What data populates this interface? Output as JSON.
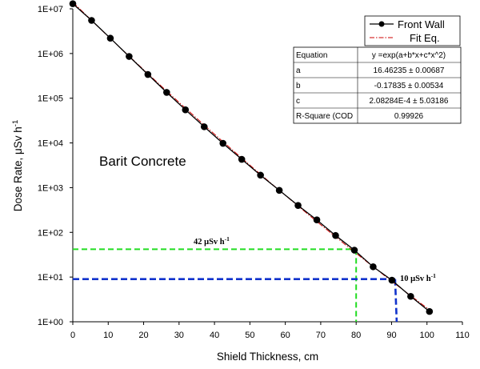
{
  "chart_data": {
    "type": "scatter",
    "xlabel": "Shield Thickness, cm",
    "ylabel_main": "Dose Rate, μSv h",
    "ylabel_sup": "-1",
    "xlim": [
      0,
      110
    ],
    "xticks": [
      0,
      10,
      20,
      30,
      40,
      50,
      60,
      70,
      80,
      90,
      100,
      110
    ],
    "ylim_log10": [
      0,
      7
    ],
    "yscale": "log",
    "yticks": [
      {
        "exp": 7,
        "label": "1E+07"
      },
      {
        "exp": 6,
        "label": "1E+06"
      },
      {
        "exp": 5,
        "label": "1E+05"
      },
      {
        "exp": 4,
        "label": "1E+04"
      },
      {
        "exp": 3,
        "label": "1E+03"
      },
      {
        "exp": 2,
        "label": "1E+02"
      },
      {
        "exp": 1,
        "label": "1E+01"
      },
      {
        "exp": 0,
        "label": "1E+00"
      }
    ],
    "grid": false,
    "legend_placement": "top-right",
    "series": [
      {
        "name": "Front Wall",
        "color": "#000000",
        "marker": "circle",
        "points": [
          [
            0,
            13000000
          ],
          [
            5.3,
            5500000
          ],
          [
            10.6,
            2200000
          ],
          [
            15.9,
            860000
          ],
          [
            21.2,
            340000
          ],
          [
            26.5,
            135000
          ],
          [
            31.8,
            55000
          ],
          [
            37.1,
            23000
          ],
          [
            42.4,
            9800
          ],
          [
            47.7,
            4300
          ],
          [
            53,
            1900
          ],
          [
            58.3,
            870
          ],
          [
            63.6,
            400
          ],
          [
            68.9,
            190
          ],
          [
            74.2,
            85
          ],
          [
            79.5,
            40
          ],
          [
            84.8,
            17
          ],
          [
            90.1,
            8.5
          ],
          [
            95.4,
            3.7
          ],
          [
            100.7,
            1.7
          ]
        ]
      },
      {
        "name": "Fit Eq.",
        "color": "#cc0000",
        "style": "dash-dot",
        "fit_params": {
          "a": 16.46235,
          "b": -0.17835,
          "c": 0.000208284
        },
        "x_range": [
          0,
          101
        ]
      }
    ],
    "annotations": {
      "material": "Barit Concrete",
      "marker_80": {
        "text": "42 μSv h",
        "sup": "-1",
        "x": 80,
        "y": 42,
        "color": "#22dd22"
      },
      "marker_90": {
        "text": "10 μSv h",
        "sup": "-1",
        "x": 91,
        "y": 9,
        "color": "#1133cc"
      }
    },
    "fit_table": {
      "rows": [
        [
          "Equation",
          "y =exp(a+b*x+c*x^2)"
        ],
        [
          "a",
          "16.46235 ± 0.00687"
        ],
        [
          "b",
          "-0.17835 ± 0.00534"
        ],
        [
          "c",
          "2.08284E-4 ± 5.03186"
        ],
        [
          "R-Square (COD",
          "0.99926"
        ]
      ]
    }
  }
}
